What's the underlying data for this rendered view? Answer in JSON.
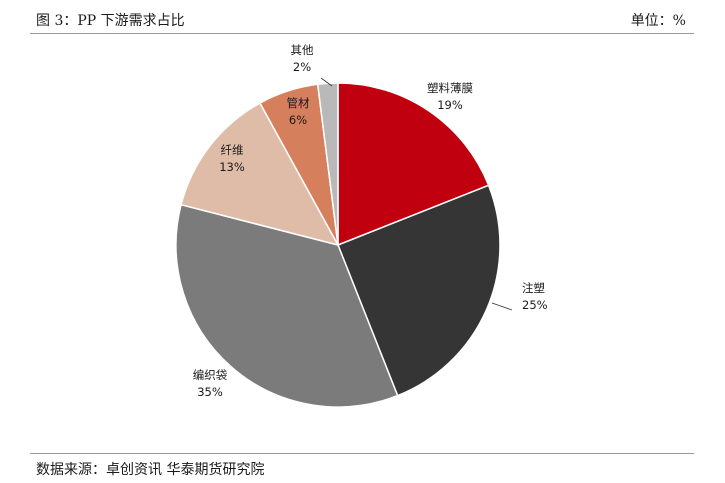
{
  "header": {
    "title": "图 3：PP 下游需求占比",
    "unit": "单位：%"
  },
  "footer": {
    "source": "数据来源：卓创资讯 华泰期货研究院"
  },
  "chart_data": {
    "type": "pie",
    "slices": [
      {
        "name": "塑料薄膜",
        "value": 19,
        "label": "19%",
        "color": "#c0000f"
      },
      {
        "name": "注塑",
        "value": 25,
        "label": "25%",
        "color": "#353535"
      },
      {
        "name": "编织袋",
        "value": 35,
        "label": "35%",
        "color": "#7b7b7b"
      },
      {
        "name": "纤维",
        "value": 13,
        "label": "13%",
        "color": "#dfbca8"
      },
      {
        "name": "管材",
        "value": 6,
        "label": "6%",
        "color": "#d67f5c"
      },
      {
        "name": "其他",
        "value": 2,
        "label": "2%",
        "color": "#b9b9b9"
      }
    ],
    "start": "12 o'clock",
    "direction": "clockwise"
  }
}
